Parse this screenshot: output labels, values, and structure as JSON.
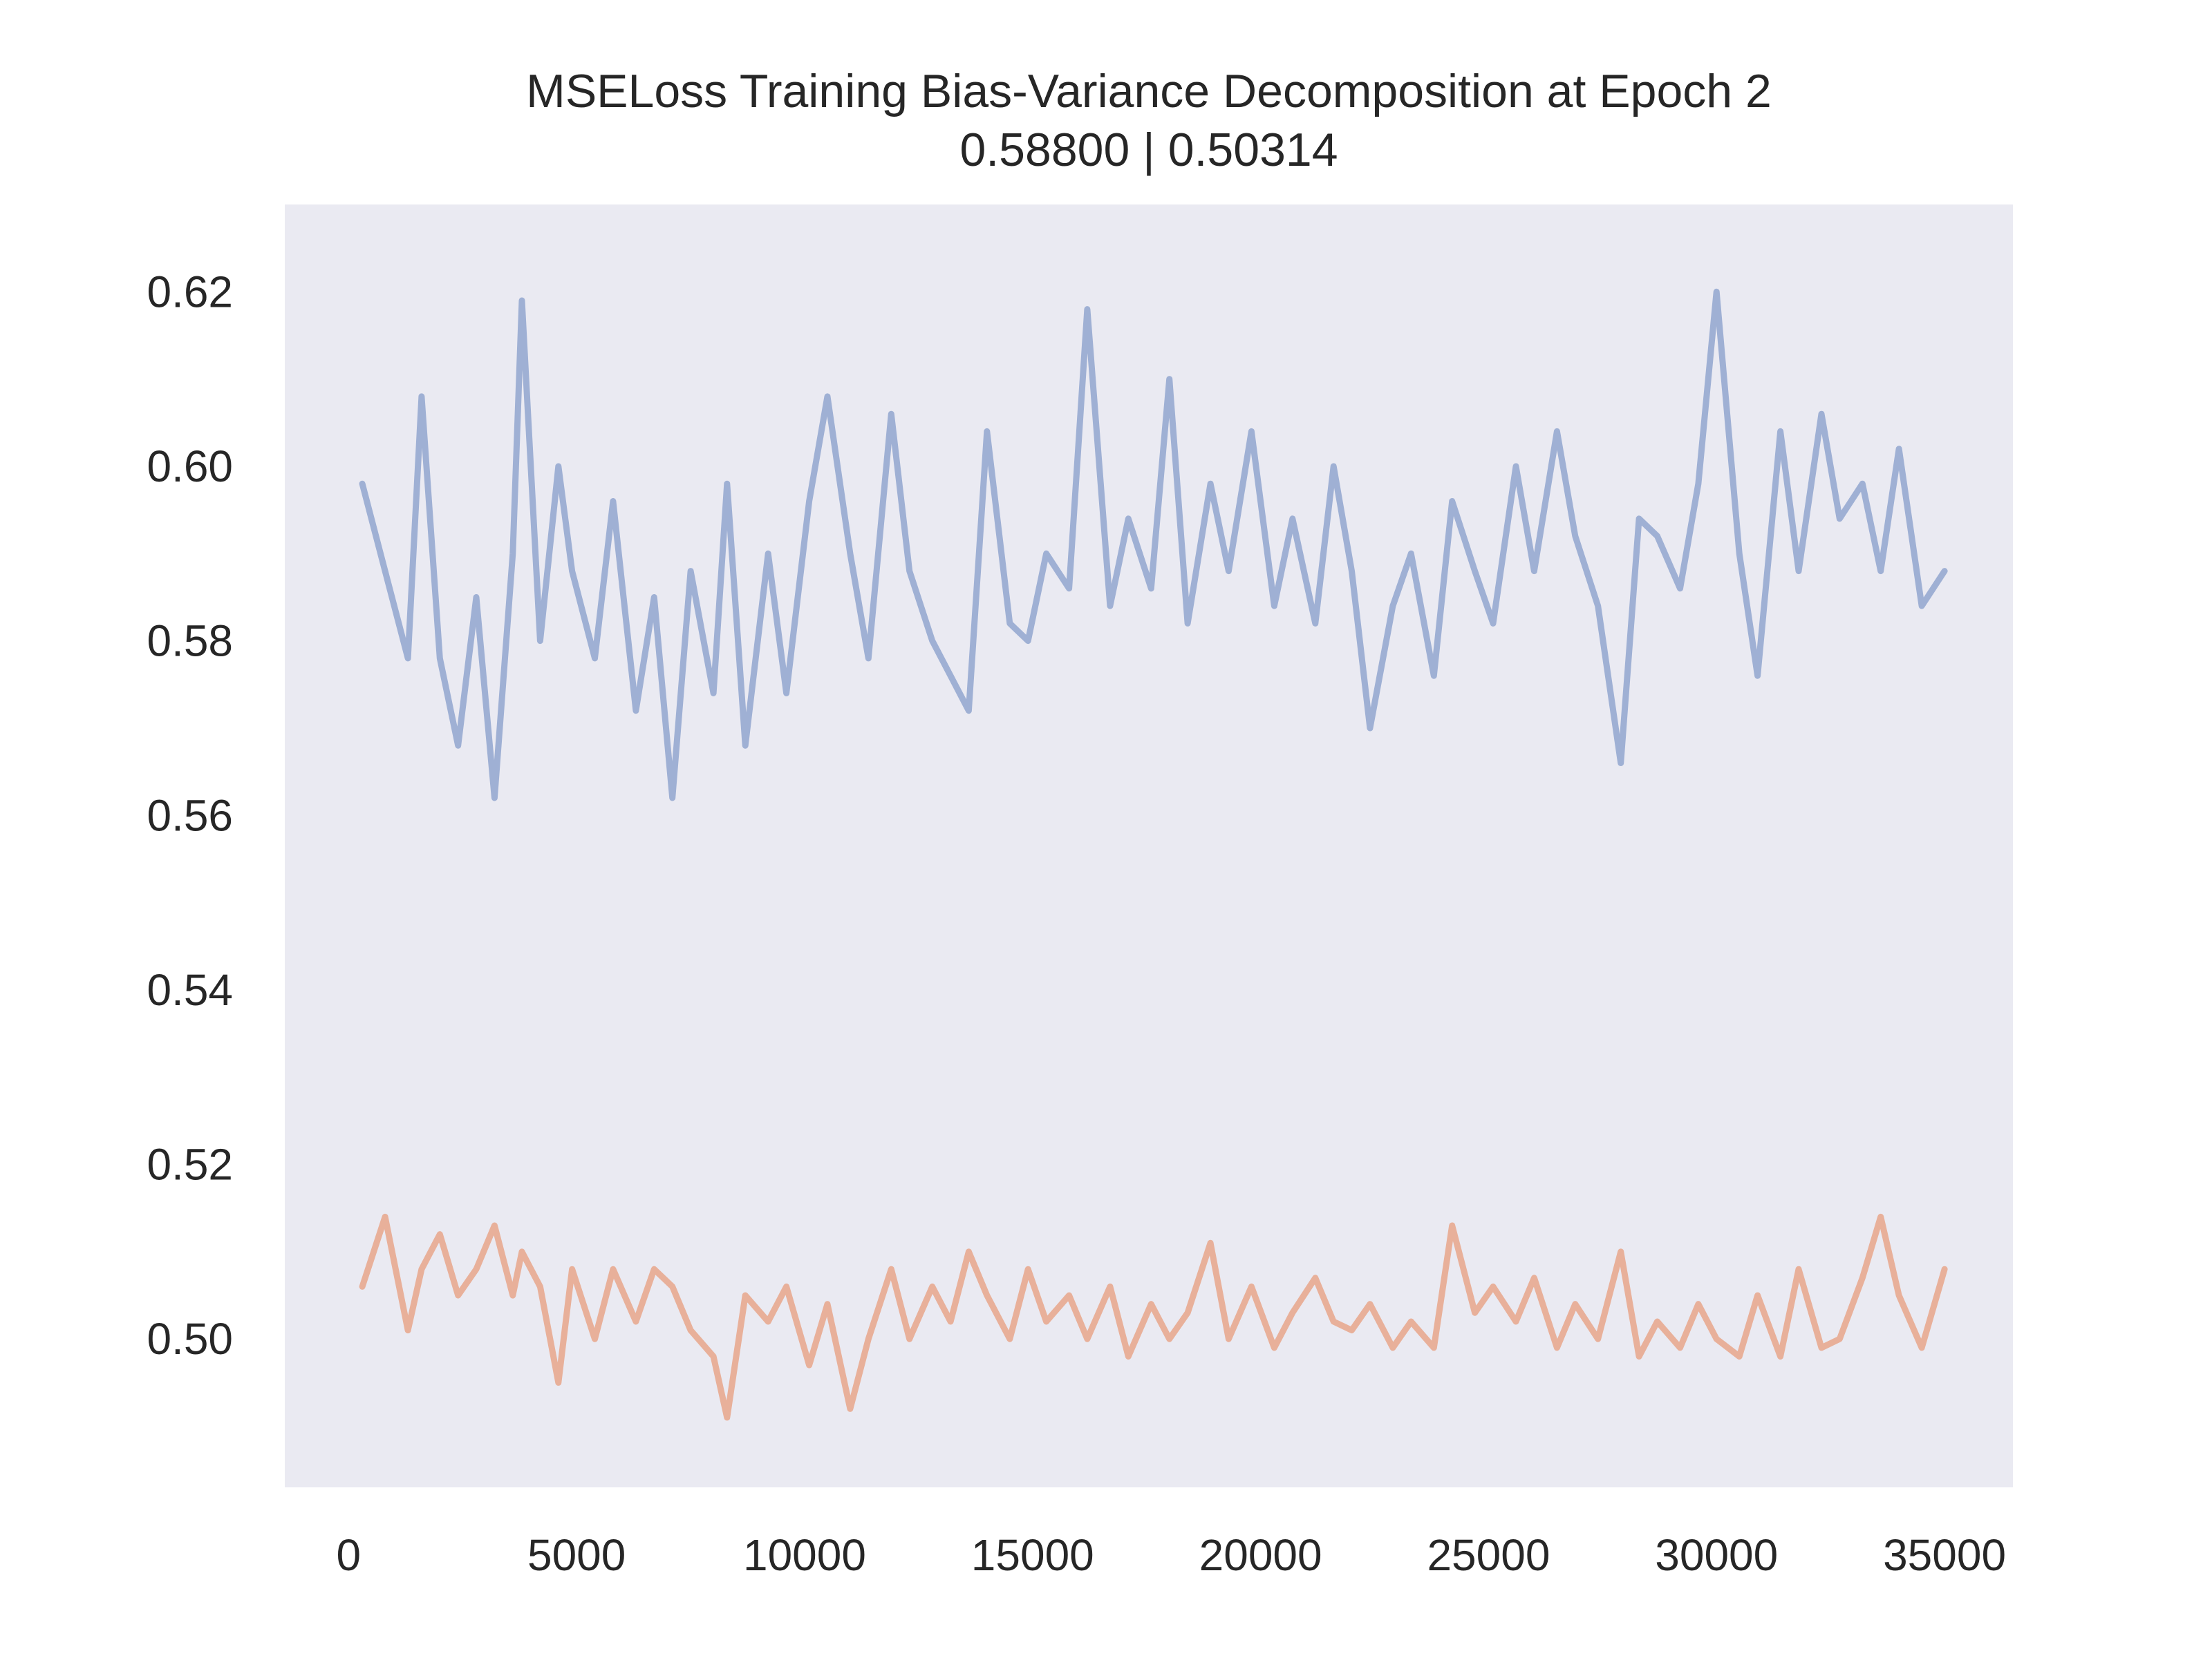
{
  "chart_data": {
    "type": "line",
    "title": "MSELoss Training Bias-Variance Decomposition at Epoch 2",
    "subtitle": "0.58800 | 0.50314",
    "xlabel": "",
    "ylabel": "",
    "xlim": [
      -1400,
      36500
    ],
    "ylim": [
      0.483,
      0.63
    ],
    "xticks": [
      0,
      5000,
      10000,
      15000,
      20000,
      25000,
      30000,
      35000
    ],
    "xtick_labels": [
      "0",
      "5000",
      "10000",
      "15000",
      "20000",
      "25000",
      "30000",
      "35000"
    ],
    "yticks": [
      0.5,
      0.52,
      0.54,
      0.56,
      0.58,
      0.6,
      0.62
    ],
    "ytick_labels": [
      "0.50",
      "0.52",
      "0.54",
      "0.56",
      "0.58",
      "0.60",
      "0.62"
    ],
    "grid": false,
    "background_color": "#eaeaf2",
    "series": [
      {
        "color": "#9fb0d4",
        "x": [
          300,
          800,
          1300,
          1600,
          2000,
          2400,
          2800,
          3200,
          3600,
          3800,
          4200,
          4600,
          4900,
          5400,
          5800,
          6300,
          6700,
          7100,
          7500,
          8000,
          8300,
          8700,
          9200,
          9600,
          10100,
          10500,
          11000,
          11400,
          11900,
          12300,
          12800,
          13200,
          13600,
          14000,
          14500,
          14900,
          15300,
          15800,
          16200,
          16700,
          17100,
          17600,
          18000,
          18400,
          18900,
          19300,
          19800,
          20300,
          20700,
          21200,
          21600,
          22000,
          22400,
          22900,
          23300,
          23800,
          24200,
          24700,
          25100,
          25600,
          26000,
          26500,
          26900,
          27400,
          27900,
          28300,
          28700,
          29200,
          29600,
          30000,
          30500,
          30900,
          31400,
          31800,
          32300,
          32700,
          33200,
          33600,
          34000,
          34500,
          35000
        ],
        "values": [
          0.598,
          0.588,
          0.578,
          0.608,
          0.578,
          0.568,
          0.585,
          0.562,
          0.59,
          0.619,
          0.58,
          0.6,
          0.588,
          0.578,
          0.596,
          0.572,
          0.585,
          0.562,
          0.588,
          0.574,
          0.598,
          0.568,
          0.59,
          0.574,
          0.596,
          0.608,
          0.59,
          0.578,
          0.606,
          0.588,
          0.58,
          0.576,
          0.572,
          0.604,
          0.582,
          0.58,
          0.59,
          0.586,
          0.618,
          0.584,
          0.594,
          0.586,
          0.61,
          0.582,
          0.598,
          0.588,
          0.604,
          0.584,
          0.594,
          0.582,
          0.6,
          0.588,
          0.57,
          0.584,
          0.59,
          0.576,
          0.596,
          0.588,
          0.582,
          0.6,
          0.588,
          0.604,
          0.592,
          0.584,
          0.566,
          0.594,
          0.592,
          0.586,
          0.598,
          0.62,
          0.59,
          0.576,
          0.604,
          0.588,
          0.606,
          0.594,
          0.598,
          0.588,
          0.602,
          0.584,
          0.588
        ]
      },
      {
        "color": "#e8b09a",
        "x": [
          300,
          800,
          1300,
          1600,
          2000,
          2400,
          2800,
          3200,
          3600,
          3800,
          4200,
          4600,
          4900,
          5400,
          5800,
          6300,
          6700,
          7100,
          7500,
          8000,
          8300,
          8700,
          9200,
          9600,
          10100,
          10500,
          11000,
          11400,
          11900,
          12300,
          12800,
          13200,
          13600,
          14000,
          14500,
          14900,
          15300,
          15800,
          16200,
          16700,
          17100,
          17600,
          18000,
          18400,
          18900,
          19300,
          19800,
          20300,
          20700,
          21200,
          21600,
          22000,
          22400,
          22900,
          23300,
          23800,
          24200,
          24700,
          25100,
          25600,
          26000,
          26500,
          26900,
          27400,
          27900,
          28300,
          28700,
          29200,
          29600,
          30000,
          30500,
          30900,
          31400,
          31800,
          32300,
          32700,
          33200,
          33600,
          34000,
          34500,
          35000
        ],
        "values": [
          0.506,
          0.514,
          0.501,
          0.508,
          0.512,
          0.505,
          0.508,
          0.513,
          0.505,
          0.51,
          0.506,
          0.495,
          0.508,
          0.5,
          0.508,
          0.502,
          0.508,
          0.506,
          0.501,
          0.498,
          0.491,
          0.505,
          0.502,
          0.506,
          0.497,
          0.504,
          0.492,
          0.5,
          0.508,
          0.5,
          0.506,
          0.502,
          0.51,
          0.505,
          0.5,
          0.508,
          0.502,
          0.505,
          0.5,
          0.506,
          0.498,
          0.504,
          0.5,
          0.503,
          0.511,
          0.5,
          0.506,
          0.499,
          0.503,
          0.507,
          0.502,
          0.501,
          0.504,
          0.499,
          0.502,
          0.499,
          0.513,
          0.503,
          0.506,
          0.502,
          0.507,
          0.499,
          0.504,
          0.5,
          0.51,
          0.498,
          0.502,
          0.499,
          0.504,
          0.5,
          0.498,
          0.505,
          0.498,
          0.508,
          0.499,
          0.5,
          0.507,
          0.514,
          0.505,
          0.499,
          0.508
        ]
      }
    ]
  }
}
